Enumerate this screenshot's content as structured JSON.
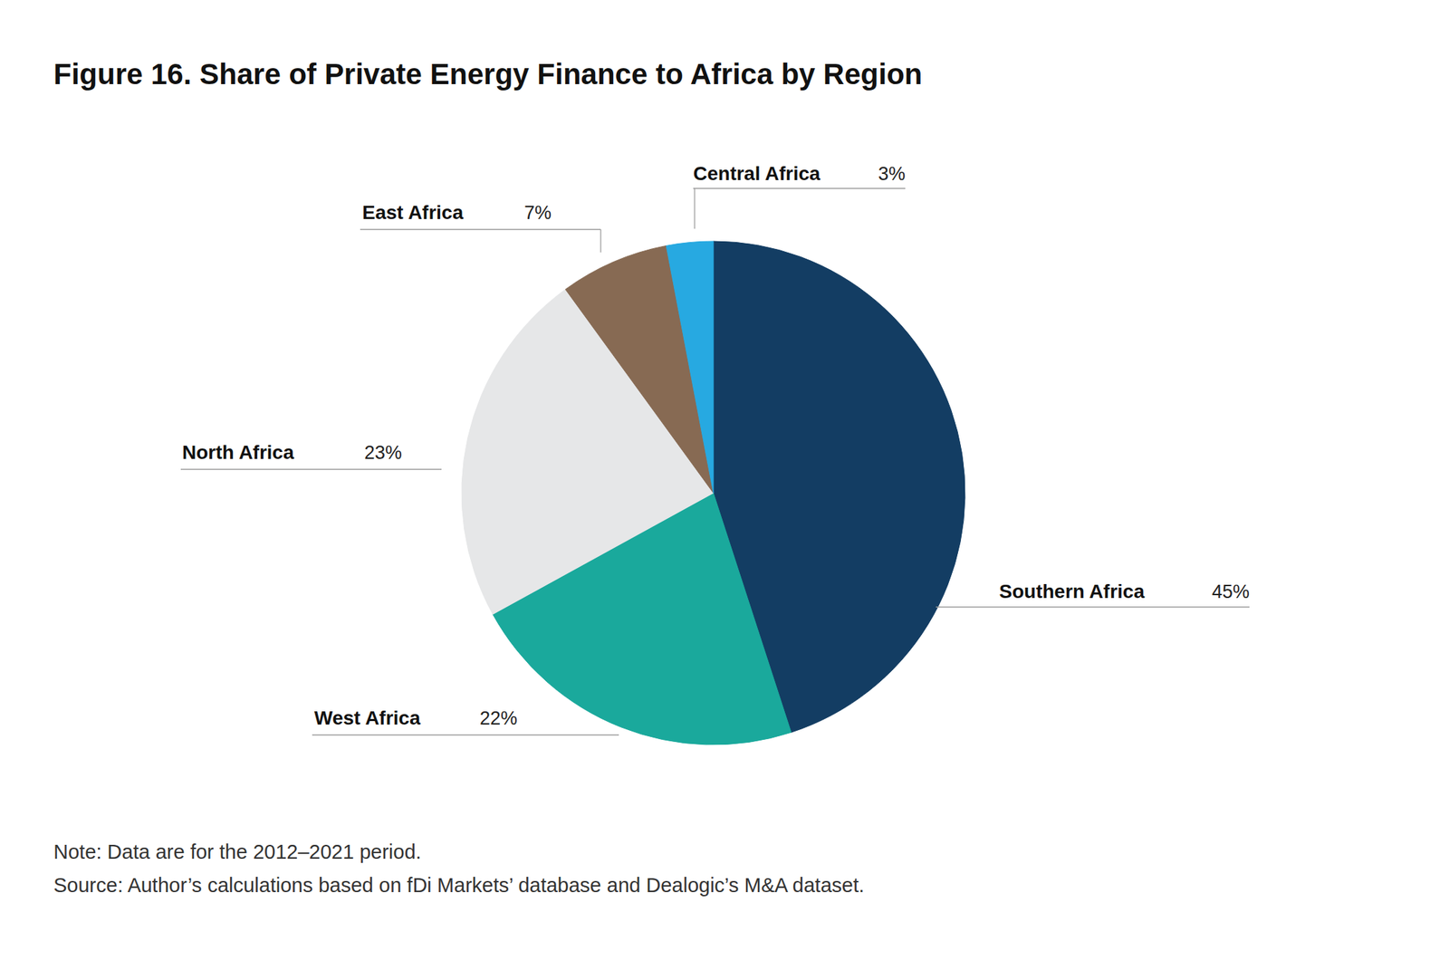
{
  "chart_data": {
    "type": "pie",
    "title": "Figure 16. Share of Private Energy Finance to Africa by Region",
    "categories": [
      "Southern Africa",
      "West Africa",
      "North Africa",
      "East Africa",
      "Central Africa"
    ],
    "values": [
      45,
      22,
      23,
      7,
      3
    ],
    "value_labels": [
      "45%",
      "22%",
      "23%",
      "7%",
      "3%"
    ],
    "colors": [
      "#133d63",
      "#1aa99c",
      "#e6e7e8",
      "#876a53",
      "#27a9e1"
    ],
    "data_labels": true,
    "note": "Note: Data are for the 2012–2021 period.",
    "source": "Source: Author’s calculations based on fDi Markets’ database and Dealogic’s M&A dataset."
  }
}
